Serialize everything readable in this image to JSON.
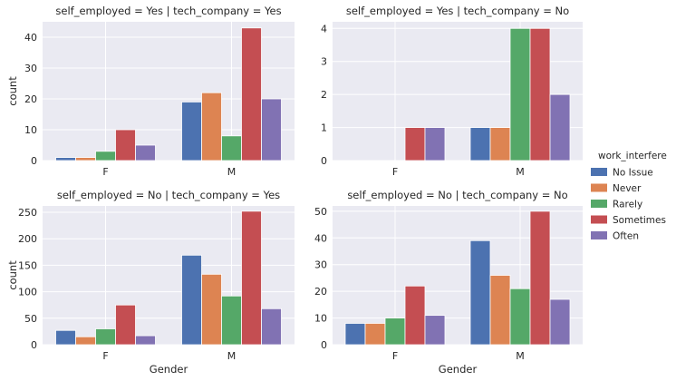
{
  "chart_data": {
    "type": "bar",
    "legend": {
      "title": "work_interfere",
      "placement": "right-center",
      "entries": [
        "No Issue",
        "Never",
        "Rarely",
        "Sometimes",
        "Often"
      ]
    },
    "colors": {
      "No Issue": "#4c72b0",
      "Never": "#dd8452",
      "Rarely": "#55a868",
      "Sometimes": "#c44e52",
      "Often": "#8172b3"
    },
    "grid": true,
    "categories": [
      "F",
      "M"
    ],
    "xlabel": "Gender",
    "ylabel": "count",
    "panels": [
      {
        "title": "self_employed = Yes | tech_company = Yes",
        "ylim": [
          0,
          45
        ],
        "yticks": [
          0,
          10,
          20,
          30,
          40
        ],
        "series": [
          {
            "name": "No Issue",
            "values": [
              1,
              19
            ]
          },
          {
            "name": "Never",
            "values": [
              1,
              22
            ]
          },
          {
            "name": "Rarely",
            "values": [
              3,
              8
            ]
          },
          {
            "name": "Sometimes",
            "values": [
              10,
              43
            ]
          },
          {
            "name": "Often",
            "values": [
              5,
              20
            ]
          }
        ]
      },
      {
        "title": "self_employed = Yes | tech_company = No",
        "ylim": [
          0,
          4.2
        ],
        "yticks": [
          0,
          1,
          2,
          3,
          4
        ],
        "series": [
          {
            "name": "No Issue",
            "values": [
              null,
              1
            ]
          },
          {
            "name": "Never",
            "values": [
              null,
              1
            ]
          },
          {
            "name": "Rarely",
            "values": [
              null,
              4
            ]
          },
          {
            "name": "Sometimes",
            "values": [
              1,
              4
            ]
          },
          {
            "name": "Often",
            "values": [
              1,
              2
            ]
          }
        ]
      },
      {
        "title": "self_employed = No | tech_company = Yes",
        "ylim": [
          0,
          262
        ],
        "yticks": [
          0,
          50,
          100,
          150,
          200,
          250
        ],
        "series": [
          {
            "name": "No Issue",
            "values": [
              27,
              169
            ]
          },
          {
            "name": "Never",
            "values": [
              15,
              133
            ]
          },
          {
            "name": "Rarely",
            "values": [
              30,
              92
            ]
          },
          {
            "name": "Sometimes",
            "values": [
              75,
              252
            ]
          },
          {
            "name": "Often",
            "values": [
              17,
              68
            ]
          }
        ]
      },
      {
        "title": "self_employed = No | tech_company = No",
        "ylim": [
          0,
          52
        ],
        "yticks": [
          0,
          10,
          20,
          30,
          40,
          50
        ],
        "series": [
          {
            "name": "No Issue",
            "values": [
              8,
              39
            ]
          },
          {
            "name": "Never",
            "values": [
              8,
              26
            ]
          },
          {
            "name": "Rarely",
            "values": [
              10,
              21
            ]
          },
          {
            "name": "Sometimes",
            "values": [
              22,
              50
            ]
          },
          {
            "name": "Often",
            "values": [
              11,
              17
            ]
          }
        ]
      }
    ]
  }
}
